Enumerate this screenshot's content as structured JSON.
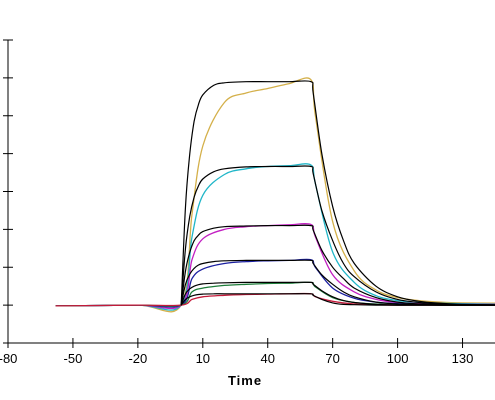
{
  "chart_data": {
    "type": "line",
    "title": "",
    "xlabel": "Time",
    "ylabel": "",
    "xlim": [
      -80,
      145
    ],
    "ylim": [
      0,
      8
    ],
    "grid": false,
    "legend": "none",
    "x_ticks": [
      -80,
      -50,
      -20,
      10,
      40,
      70,
      100,
      130
    ],
    "x_tick_labels": [
      "-80",
      "-50",
      "-20",
      "10",
      "40",
      "70",
      "100",
      "130"
    ],
    "y_ticks": [
      0,
      1,
      2,
      3,
      4,
      5,
      6,
      7,
      8
    ],
    "association_start": 0,
    "dissociation_start": 60,
    "series_colors": [
      "#d4b04a",
      "#20b6c8",
      "#c21fc2",
      "#1b1fa0",
      "#1e7d3a",
      "#c41a3a"
    ],
    "fit_color": "#000000",
    "series": [
      {
        "x": [
          -58,
          -20,
          0,
          5,
          10,
          20,
          30,
          40,
          50,
          60,
          62,
          70,
          80,
          90,
          100,
          110,
          120,
          130,
          145
        ],
        "y": [
          0.98,
          1.0,
          1.0,
          3.4,
          5.2,
          6.35,
          6.6,
          6.72,
          6.85,
          6.95,
          6.0,
          3.2,
          1.9,
          1.4,
          1.2,
          1.12,
          1.08,
          1.06,
          1.05
        ]
      },
      {
        "x": [
          -58,
          -20,
          0,
          5,
          10,
          20,
          30,
          40,
          50,
          60,
          62,
          70,
          80,
          90,
          100,
          110,
          120,
          130,
          145
        ],
        "y": [
          0.98,
          1.0,
          1.0,
          2.8,
          3.9,
          4.45,
          4.6,
          4.66,
          4.68,
          4.7,
          4.2,
          2.4,
          1.6,
          1.25,
          1.12,
          1.07,
          1.05,
          1.04,
          1.03
        ]
      },
      {
        "x": [
          -58,
          -20,
          0,
          5,
          10,
          20,
          30,
          40,
          50,
          60,
          62,
          70,
          80,
          90,
          100,
          110,
          120,
          130,
          145
        ],
        "y": [
          0.98,
          1.0,
          1.0,
          2.2,
          2.75,
          3.0,
          3.07,
          3.1,
          3.12,
          3.13,
          2.8,
          1.8,
          1.35,
          1.15,
          1.07,
          1.04,
          1.03,
          1.02,
          1.02
        ]
      },
      {
        "x": [
          -58,
          -20,
          0,
          5,
          10,
          20,
          30,
          40,
          50,
          60,
          62,
          70,
          80,
          90,
          100,
          110,
          120,
          130,
          145
        ],
        "y": [
          0.98,
          1.0,
          1.0,
          1.7,
          1.95,
          2.1,
          2.15,
          2.17,
          2.18,
          2.2,
          2.0,
          1.45,
          1.18,
          1.08,
          1.04,
          1.02,
          1.02,
          1.01,
          1.01
        ]
      },
      {
        "x": [
          -58,
          -20,
          0,
          5,
          10,
          20,
          30,
          40,
          50,
          60,
          62,
          70,
          80,
          90,
          100,
          110,
          120,
          130,
          145
        ],
        "y": [
          0.98,
          1.0,
          1.0,
          1.35,
          1.45,
          1.52,
          1.55,
          1.57,
          1.58,
          1.6,
          1.48,
          1.2,
          1.07,
          1.03,
          1.01,
          1.01,
          1.0,
          1.0,
          1.0
        ]
      },
      {
        "x": [
          -58,
          -20,
          0,
          5,
          10,
          20,
          30,
          40,
          50,
          60,
          62,
          70,
          80,
          90,
          100,
          110,
          120,
          130,
          145
        ],
        "y": [
          0.98,
          1.0,
          1.0,
          1.15,
          1.22,
          1.26,
          1.28,
          1.29,
          1.3,
          1.3,
          1.22,
          1.1,
          1.03,
          1.01,
          1.0,
          1.0,
          1.0,
          1.0,
          1.0
        ]
      }
    ],
    "fits": [
      {
        "x": [
          0,
          2,
          4,
          6,
          8,
          10,
          15,
          20,
          30,
          40,
          50,
          60,
          61,
          65,
          70,
          75,
          80,
          90,
          100,
          110,
          120,
          130,
          145
        ],
        "y": [
          1.0,
          3.6,
          5.0,
          5.85,
          6.3,
          6.55,
          6.8,
          6.87,
          6.9,
          6.9,
          6.9,
          6.9,
          6.6,
          5.0,
          3.6,
          2.7,
          2.1,
          1.5,
          1.22,
          1.1,
          1.05,
          1.02,
          1.01
        ]
      },
      {
        "x": [
          0,
          2,
          4,
          6,
          8,
          10,
          15,
          20,
          30,
          40,
          50,
          60,
          61,
          65,
          70,
          75,
          80,
          90,
          100,
          110,
          120,
          130,
          145
        ],
        "y": [
          1.0,
          2.5,
          3.35,
          3.85,
          4.15,
          4.33,
          4.52,
          4.6,
          4.65,
          4.66,
          4.66,
          4.66,
          4.47,
          3.5,
          2.7,
          2.1,
          1.75,
          1.35,
          1.15,
          1.07,
          1.03,
          1.01,
          1.0
        ]
      },
      {
        "x": [
          0,
          2,
          4,
          6,
          8,
          10,
          15,
          20,
          30,
          40,
          50,
          60,
          61,
          65,
          70,
          75,
          80,
          90,
          100,
          110,
          120,
          130,
          145
        ],
        "y": [
          1.0,
          1.9,
          2.4,
          2.7,
          2.85,
          2.94,
          3.03,
          3.07,
          3.09,
          3.1,
          3.1,
          3.1,
          2.98,
          2.45,
          2.0,
          1.7,
          1.45,
          1.2,
          1.08,
          1.03,
          1.01,
          1.0,
          1.0
        ]
      },
      {
        "x": [
          0,
          2,
          4,
          6,
          8,
          10,
          15,
          20,
          30,
          40,
          50,
          60,
          61,
          65,
          70,
          75,
          80,
          90,
          100,
          110,
          120,
          130,
          145
        ],
        "y": [
          1.0,
          1.55,
          1.82,
          1.97,
          2.06,
          2.1,
          2.15,
          2.17,
          2.18,
          2.18,
          2.18,
          2.18,
          2.1,
          1.8,
          1.55,
          1.35,
          1.22,
          1.08,
          1.03,
          1.01,
          1.0,
          1.0,
          1.0
        ]
      },
      {
        "x": [
          0,
          2,
          4,
          6,
          8,
          10,
          15,
          20,
          30,
          40,
          50,
          60,
          61,
          65,
          70,
          75,
          80,
          90,
          100,
          110,
          120,
          130,
          145
        ],
        "y": [
          1.0,
          1.3,
          1.43,
          1.5,
          1.54,
          1.56,
          1.58,
          1.59,
          1.6,
          1.6,
          1.6,
          1.6,
          1.55,
          1.38,
          1.22,
          1.12,
          1.07,
          1.02,
          1.0,
          1.0,
          1.0,
          1.0,
          1.0
        ]
      },
      {
        "x": [
          0,
          2,
          4,
          6,
          8,
          10,
          15,
          20,
          30,
          40,
          50,
          60,
          61,
          65,
          70,
          75,
          80,
          90,
          100,
          110,
          120,
          130,
          145
        ],
        "y": [
          1.0,
          1.15,
          1.22,
          1.26,
          1.28,
          1.29,
          1.3,
          1.3,
          1.3,
          1.3,
          1.3,
          1.3,
          1.26,
          1.15,
          1.06,
          1.02,
          1.01,
          1.0,
          1.0,
          1.0,
          1.0,
          1.0,
          1.0
        ]
      }
    ]
  }
}
